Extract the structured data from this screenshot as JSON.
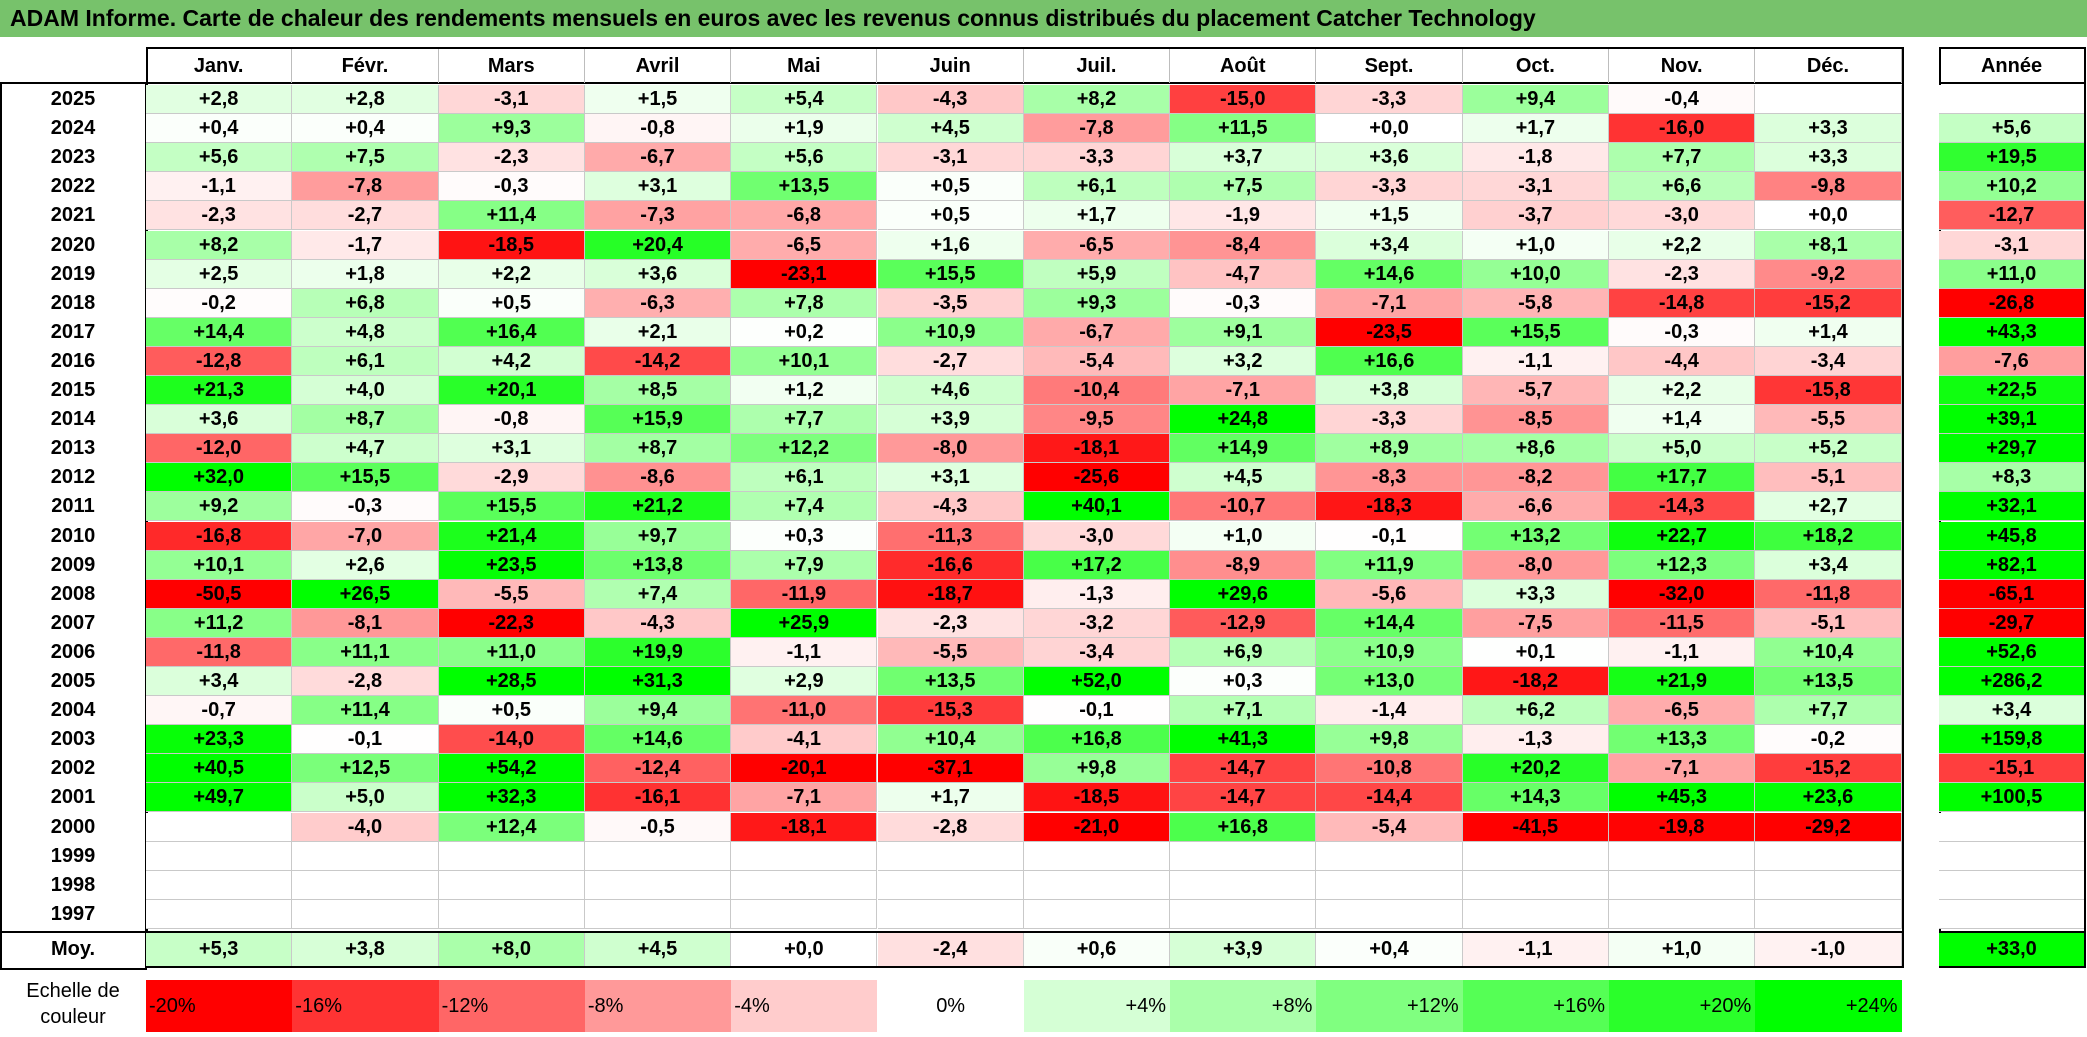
{
  "title": "ADAM Informe. Carte de chaleur des rendements mensuels en euros avec les revenus connus distribués du placement Catcher Technology",
  "chart_data": {
    "type": "heatmap",
    "title": "ADAM Informe. Carte de chaleur des rendements mensuels en euros avec les revenus connus distribués du placement Catcher Technology",
    "months": [
      "Janv.",
      "Févr.",
      "Mars",
      "Avril",
      "Mai",
      "Juin",
      "Juil.",
      "Août",
      "Sept.",
      "Oct.",
      "Nov.",
      "Déc."
    ],
    "annual_label": "Année",
    "rows": [
      {
        "year": "2025",
        "values": [
          "+2,8",
          "+2,8",
          "-3,1",
          "+1,5",
          "+5,4",
          "-4,3",
          "+8,2",
          "-15,0",
          "-3,3",
          "+9,4",
          "-0,4",
          ""
        ],
        "annual": ""
      },
      {
        "year": "2024",
        "values": [
          "+0,4",
          "+0,4",
          "+9,3",
          "-0,8",
          "+1,9",
          "+4,5",
          "-7,8",
          "+11,5",
          "+0,0",
          "+1,7",
          "-16,0",
          "+3,3"
        ],
        "annual": "+5,6"
      },
      {
        "year": "2023",
        "values": [
          "+5,6",
          "+7,5",
          "-2,3",
          "-6,7",
          "+5,6",
          "-3,1",
          "-3,3",
          "+3,7",
          "+3,6",
          "-1,8",
          "+7,7",
          "+3,3"
        ],
        "annual": "+19,5"
      },
      {
        "year": "2022",
        "values": [
          "-1,1",
          "-7,8",
          "-0,3",
          "+3,1",
          "+13,5",
          "+0,5",
          "+6,1",
          "+7,5",
          "-3,3",
          "-3,1",
          "+6,6",
          "-9,8"
        ],
        "annual": "+10,2"
      },
      {
        "year": "2021",
        "values": [
          "-2,3",
          "-2,7",
          "+11,4",
          "-7,3",
          "-6,8",
          "+0,5",
          "+1,7",
          "-1,9",
          "+1,5",
          "-3,7",
          "-3,0",
          "+0,0"
        ],
        "annual": "-12,7"
      },
      {
        "year": "2020",
        "values": [
          "+8,2",
          "-1,7",
          "-18,5",
          "+20,4",
          "-6,5",
          "+1,6",
          "-6,5",
          "-8,4",
          "+3,4",
          "+1,0",
          "+2,2",
          "+8,1"
        ],
        "annual": "-3,1"
      },
      {
        "year": "2019",
        "values": [
          "+2,5",
          "+1,8",
          "+2,2",
          "+3,6",
          "-23,1",
          "+15,5",
          "+5,9",
          "-4,7",
          "+14,6",
          "+10,0",
          "-2,3",
          "-9,2"
        ],
        "annual": "+11,0"
      },
      {
        "year": "2018",
        "values": [
          "-0,2",
          "+6,8",
          "+0,5",
          "-6,3",
          "+7,8",
          "-3,5",
          "+9,3",
          "-0,3",
          "-7,1",
          "-5,8",
          "-14,8",
          "-15,2"
        ],
        "annual": "-26,8"
      },
      {
        "year": "2017",
        "values": [
          "+14,4",
          "+4,8",
          "+16,4",
          "+2,1",
          "+0,2",
          "+10,9",
          "-6,7",
          "+9,1",
          "-23,5",
          "+15,5",
          "-0,3",
          "+1,4"
        ],
        "annual": "+43,3"
      },
      {
        "year": "2016",
        "values": [
          "-12,8",
          "+6,1",
          "+4,2",
          "-14,2",
          "+10,1",
          "-2,7",
          "-5,4",
          "+3,2",
          "+16,6",
          "-1,1",
          "-4,4",
          "-3,4"
        ],
        "annual": "-7,6"
      },
      {
        "year": "2015",
        "values": [
          "+21,3",
          "+4,0",
          "+20,1",
          "+8,5",
          "+1,2",
          "+4,6",
          "-10,4",
          "-7,1",
          "+3,8",
          "-5,7",
          "+2,2",
          "-15,8"
        ],
        "annual": "+22,5"
      },
      {
        "year": "2014",
        "values": [
          "+3,6",
          "+8,7",
          "-0,8",
          "+15,9",
          "+7,7",
          "+3,9",
          "-9,5",
          "+24,8",
          "-3,3",
          "-8,5",
          "+1,4",
          "-5,5"
        ],
        "annual": "+39,1"
      },
      {
        "year": "2013",
        "values": [
          "-12,0",
          "+4,7",
          "+3,1",
          "+8,7",
          "+12,2",
          "-8,0",
          "-18,1",
          "+14,9",
          "+8,9",
          "+8,6",
          "+5,0",
          "+5,2"
        ],
        "annual": "+29,7"
      },
      {
        "year": "2012",
        "values": [
          "+32,0",
          "+15,5",
          "-2,9",
          "-8,6",
          "+6,1",
          "+3,1",
          "-25,6",
          "+4,5",
          "-8,3",
          "-8,2",
          "+17,7",
          "-5,1"
        ],
        "annual": "+8,3"
      },
      {
        "year": "2011",
        "values": [
          "+9,2",
          "-0,3",
          "+15,5",
          "+21,2",
          "+7,4",
          "-4,3",
          "+40,1",
          "-10,7",
          "-18,3",
          "-6,6",
          "-14,3",
          "+2,7"
        ],
        "annual": "+32,1"
      },
      {
        "year": "2010",
        "values": [
          "-16,8",
          "-7,0",
          "+21,4",
          "+9,7",
          "+0,3",
          "-11,3",
          "-3,0",
          "+1,0",
          "-0,1",
          "+13,2",
          "+22,7",
          "+18,2"
        ],
        "annual": "+45,8"
      },
      {
        "year": "2009",
        "values": [
          "+10,1",
          "+2,6",
          "+23,5",
          "+13,8",
          "+7,9",
          "-16,6",
          "+17,2",
          "-8,9",
          "+11,9",
          "-8,0",
          "+12,3",
          "+3,4"
        ],
        "annual": "+82,1"
      },
      {
        "year": "2008",
        "values": [
          "-50,5",
          "+26,5",
          "-5,5",
          "+7,4",
          "-11,9",
          "-18,7",
          "-1,3",
          "+29,6",
          "-5,6",
          "+3,3",
          "-32,0",
          "-11,8"
        ],
        "annual": "-65,1"
      },
      {
        "year": "2007",
        "values": [
          "+11,2",
          "-8,1",
          "-22,3",
          "-4,3",
          "+25,9",
          "-2,3",
          "-3,2",
          "-12,9",
          "+14,4",
          "-7,5",
          "-11,5",
          "-5,1"
        ],
        "annual": "-29,7"
      },
      {
        "year": "2006",
        "values": [
          "-11,8",
          "+11,1",
          "+11,0",
          "+19,9",
          "-1,1",
          "-5,5",
          "-3,4",
          "+6,9",
          "+10,9",
          "+0,1",
          "-1,1",
          "+10,4"
        ],
        "annual": "+52,6"
      },
      {
        "year": "2005",
        "values": [
          "+3,4",
          "-2,8",
          "+28,5",
          "+31,3",
          "+2,9",
          "+13,5",
          "+52,0",
          "+0,3",
          "+13,0",
          "-18,2",
          "+21,9",
          "+13,5"
        ],
        "annual": "+286,2"
      },
      {
        "year": "2004",
        "values": [
          "-0,7",
          "+11,4",
          "+0,5",
          "+9,4",
          "-11,0",
          "-15,3",
          "-0,1",
          "+7,1",
          "-1,4",
          "+6,2",
          "-6,5",
          "+7,7"
        ],
        "annual": "+3,4"
      },
      {
        "year": "2003",
        "values": [
          "+23,3",
          "-0,1",
          "-14,0",
          "+14,6",
          "-4,1",
          "+10,4",
          "+16,8",
          "+41,3",
          "+9,8",
          "-1,3",
          "+13,3",
          "-0,2"
        ],
        "annual": "+159,8"
      },
      {
        "year": "2002",
        "values": [
          "+40,5",
          "+12,5",
          "+54,2",
          "-12,4",
          "-20,1",
          "-37,1",
          "+9,8",
          "-14,7",
          "-10,8",
          "+20,2",
          "-7,1",
          "-15,2"
        ],
        "annual": "-15,1"
      },
      {
        "year": "2001",
        "values": [
          "+49,7",
          "+5,0",
          "+32,3",
          "-16,1",
          "-7,1",
          "+1,7",
          "-18,5",
          "-14,7",
          "-14,4",
          "+14,3",
          "+45,3",
          "+23,6"
        ],
        "annual": "+100,5"
      },
      {
        "year": "2000",
        "values": [
          "",
          "-4,0",
          "+12,4",
          "-0,5",
          "-18,1",
          "-2,8",
          "-21,0",
          "+16,8",
          "-5,4",
          "-41,5",
          "-19,8",
          "-29,2"
        ],
        "annual": ""
      },
      {
        "year": "1999",
        "values": [
          "",
          "",
          "",
          "",
          "",
          "",
          "",
          "",
          "",
          "",
          "",
          ""
        ],
        "annual": ""
      },
      {
        "year": "1998",
        "values": [
          "",
          "",
          "",
          "",
          "",
          "",
          "",
          "",
          "",
          "",
          "",
          ""
        ],
        "annual": ""
      },
      {
        "year": "1997",
        "values": [
          "",
          "",
          "",
          "",
          "",
          "",
          "",
          "",
          "",
          "",
          "",
          ""
        ],
        "annual": ""
      }
    ],
    "average": {
      "label": "Moy.",
      "values": [
        "+5,3",
        "+3,8",
        "+8,0",
        "+4,5",
        "+0,0",
        "-2,4",
        "+0,6",
        "+3,9",
        "+0,4",
        "-1,1",
        "+1,0",
        "-1,0"
      ],
      "annual": "+33,0"
    },
    "scale": {
      "label_line1": "Echelle de",
      "label_line2": "couleur",
      "steps": [
        {
          "label": "-20%",
          "value": -20
        },
        {
          "label": "-16%",
          "value": -16
        },
        {
          "label": "-12%",
          "value": -12
        },
        {
          "label": "-8%",
          "value": -8
        },
        {
          "label": "-4%",
          "value": -4
        },
        {
          "label": "0%",
          "value": 0
        },
        {
          "label": "+4%",
          "value": 4
        },
        {
          "label": "+8%",
          "value": 8
        },
        {
          "label": "+12%",
          "value": 12
        },
        {
          "label": "+16%",
          "value": 16
        },
        {
          "label": "+20%",
          "value": 20
        },
        {
          "label": "+24%",
          "value": 24
        }
      ]
    },
    "color_range": [
      -20,
      24
    ],
    "colors": {
      "negative": "#ff0000",
      "neutral": "#ffffff",
      "positive": "#00ff00",
      "title_bg": "#77c26b"
    }
  }
}
